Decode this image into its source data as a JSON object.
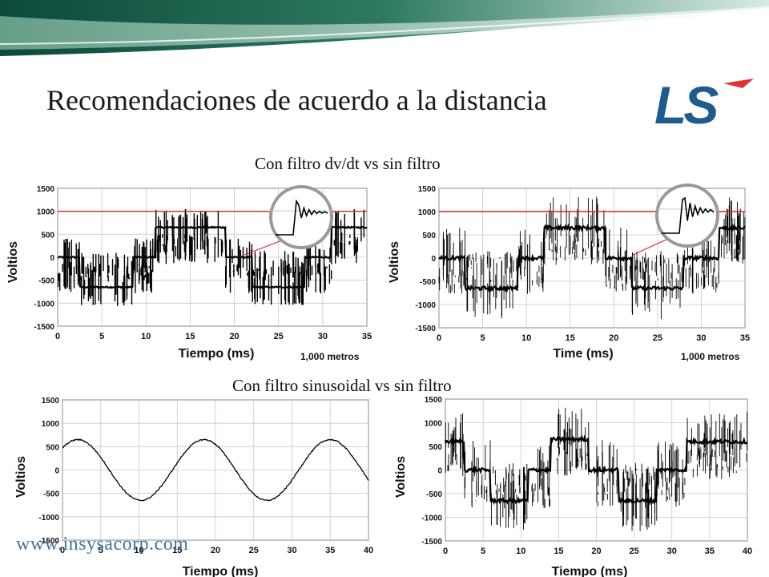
{
  "header": {
    "title": "Recomendaciones de acuerdo a la distancia",
    "logo_text": "LS",
    "logo_color": "#1e5b8e",
    "logo_accent": "#e03030"
  },
  "sections": [
    {
      "subtitle": "Con filtro dv/dt vs sin filtro"
    },
    {
      "subtitle": "Con filtro sinusoidal vs sin filtro"
    }
  ],
  "footer": {
    "url": "www.insysacorp.com"
  },
  "colors": {
    "banner_dark": "#0b4a3a",
    "banner_light": "#6aa98f",
    "limit_line": "#e02020",
    "trace": "#000000"
  },
  "chart_data": [
    {
      "type": "line",
      "ylabel": "Voltios",
      "xlabel": "Tiempo (ms)",
      "annotation": "1,000 metros",
      "xlim": [
        0,
        35
      ],
      "ylim": [
        -1500,
        1500
      ],
      "xticks": [
        0,
        5,
        10,
        15,
        20,
        25,
        30,
        35
      ],
      "yticks": [
        1500,
        1000,
        500,
        0,
        -500,
        -1000,
        -1500
      ],
      "reference_line": 1000,
      "inset": true,
      "series": [
        {
          "style": "pwm_filtered_dvdt",
          "levels": [
            0,
            -650,
            0,
            650,
            0,
            -650,
            0,
            650
          ],
          "level_times": [
            0,
            2.5,
            8.5,
            11,
            19,
            22,
            28,
            31
          ]
        }
      ]
    },
    {
      "type": "line",
      "ylabel": "Voltios",
      "xlabel": "Time (ms)",
      "annotation": "1,000 metros",
      "xlim": [
        0,
        35
      ],
      "ylim": [
        -1500,
        1500
      ],
      "xticks": [
        0,
        5,
        10,
        15,
        20,
        25,
        30,
        35
      ],
      "yticks": [
        1500,
        1000,
        500,
        0,
        -500,
        -1000,
        -1500
      ],
      "reference_line": 1000,
      "inset": true,
      "series": [
        {
          "style": "pwm_unfiltered",
          "levels": [
            0,
            -650,
            0,
            650,
            0,
            -650,
            0,
            650
          ],
          "level_times": [
            0,
            3,
            9,
            12,
            19,
            22,
            28,
            32
          ]
        }
      ]
    },
    {
      "type": "line",
      "ylabel": "Voltios",
      "xlabel": "Tiempo (ms)",
      "xlim": [
        0,
        40
      ],
      "ylim": [
        -1500,
        1500
      ],
      "xticks": [
        0,
        5,
        10,
        15,
        20,
        25,
        30,
        35,
        40
      ],
      "yticks": [
        1500,
        1000,
        500,
        0,
        -500,
        -1000,
        -1500
      ],
      "series": [
        {
          "style": "sine",
          "amplitude": 650,
          "period_ms": 16.5,
          "peak_at_ms": 2
        }
      ]
    },
    {
      "type": "line",
      "ylabel": "Voltios",
      "xlabel": "Tiempo (ms)",
      "xlim": [
        0,
        40
      ],
      "ylim": [
        -1500,
        1500
      ],
      "xticks": [
        0,
        5,
        10,
        15,
        20,
        25,
        30,
        35,
        40
      ],
      "yticks": [
        1500,
        1000,
        500,
        0,
        -500,
        -1000,
        -1500
      ],
      "series": [
        {
          "style": "pwm_unfiltered",
          "levels": [
            600,
            0,
            -650,
            0,
            650,
            0,
            -650,
            0,
            600
          ],
          "level_times": [
            0,
            2.5,
            6,
            11,
            14,
            19,
            23,
            28,
            32
          ]
        }
      ]
    }
  ]
}
